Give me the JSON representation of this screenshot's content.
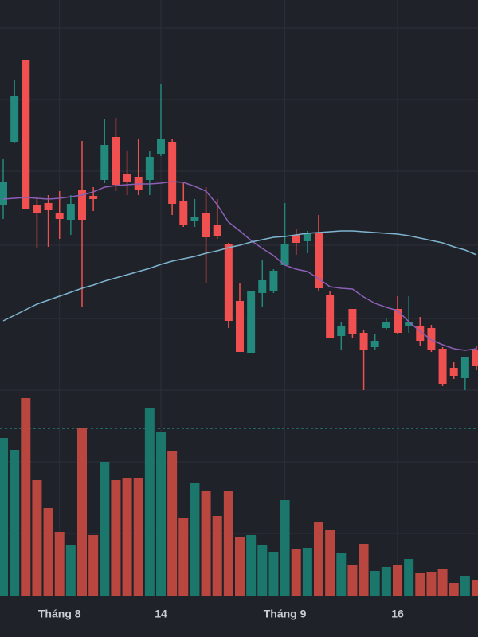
{
  "chart_data": {
    "type": "candlestick",
    "categories": [
      null,
      null,
      null,
      null,
      null,
      "Tháng 8",
      null,
      null,
      null,
      null,
      null,
      null,
      null,
      null,
      "14",
      null,
      null,
      null,
      null,
      null,
      null,
      null,
      null,
      null,
      null,
      "Tháng 9",
      null,
      null,
      null,
      null,
      null,
      null,
      null,
      null,
      null,
      "16",
      null,
      null,
      null,
      null,
      null,
      null,
      null
    ],
    "open": [
      242,
      322,
      425,
      242,
      245,
      233,
      224,
      262,
      254,
      274,
      328,
      282,
      278,
      274,
      307,
      322,
      248,
      223,
      232,
      217,
      193,
      122,
      57,
      132,
      135,
      167,
      205,
      197,
      208,
      130,
      78,
      112,
      82,
      64,
      88,
      112,
      90,
      90,
      88,
      62,
      38,
      25,
      60
    ],
    "high": [
      300,
      400,
      425,
      252,
      255,
      260,
      255,
      323,
      265,
      350,
      352,
      310,
      325,
      310,
      395,
      325,
      270,
      250,
      265,
      250,
      195,
      145,
      134,
      173,
      162,
      245,
      212,
      210,
      230,
      135,
      95,
      112,
      85,
      80,
      100,
      128,
      128,
      102,
      92,
      64,
      45,
      52,
      65
    ],
    "low": [
      225,
      320,
      238,
      188,
      190,
      200,
      205,
      115,
      235,
      270,
      260,
      255,
      255,
      255,
      304,
      230,
      215,
      215,
      145,
      200,
      88,
      58,
      57,
      115,
      132,
      167,
      180,
      182,
      135,
      75,
      60,
      75,
      10,
      60,
      85,
      80,
      82,
      65,
      58,
      15,
      24,
      10,
      35
    ],
    "close": [
      272,
      380,
      238,
      232,
      236,
      225,
      244,
      224,
      250,
      318,
      268,
      272,
      262,
      303,
      326,
      244,
      218,
      228,
      202,
      204,
      97,
      58,
      134,
      148,
      160,
      194,
      195,
      208,
      138,
      76,
      90,
      80,
      60,
      72,
      96,
      82,
      95,
      72,
      60,
      18,
      28,
      52,
      40
    ],
    "up_color": "#22897c",
    "down_color": "#f0504f",
    "ylim": [
      0,
      500
    ],
    "lines": [
      {
        "color": "#8a5fb5",
        "values": [
          250,
          251,
          252,
          251,
          250,
          251,
          253,
          255,
          259,
          265,
          267,
          268,
          269,
          269,
          270,
          272,
          271,
          266,
          260,
          243,
          221,
          210,
          198,
          188,
          179,
          167,
          162,
          159,
          150,
          140,
          138,
          137,
          127,
          119,
          114,
          110,
          96,
          84,
          73,
          67,
          62,
          60,
          62
        ]
      },
      {
        "color": "#7fb4cf",
        "values": [
          97,
          104,
          111,
          118,
          123,
          128,
          133,
          138,
          142,
          147,
          151,
          155,
          159,
          163,
          168,
          172,
          175,
          178,
          182,
          185,
          189,
          192,
          196,
          199,
          202,
          203,
          205,
          207,
          208,
          209,
          210,
          210,
          209,
          208,
          207,
          206,
          204,
          201,
          198,
          195,
          190,
          186,
          180
        ]
      }
    ],
    "volume": {
      "values": [
        198,
        183,
        248,
        145,
        110,
        80,
        63,
        210,
        76,
        168,
        145,
        148,
        148,
        235,
        206,
        181,
        98,
        141,
        131,
        100,
        131,
        73,
        76,
        63,
        55,
        120,
        58,
        60,
        92,
        83,
        53,
        38,
        65,
        31,
        36,
        38,
        46,
        28,
        30,
        34,
        16,
        25,
        20
      ],
      "ylim": [
        0,
        260
      ],
      "up_color": "#1b766c",
      "down_color": "#b9473f"
    }
  }
}
